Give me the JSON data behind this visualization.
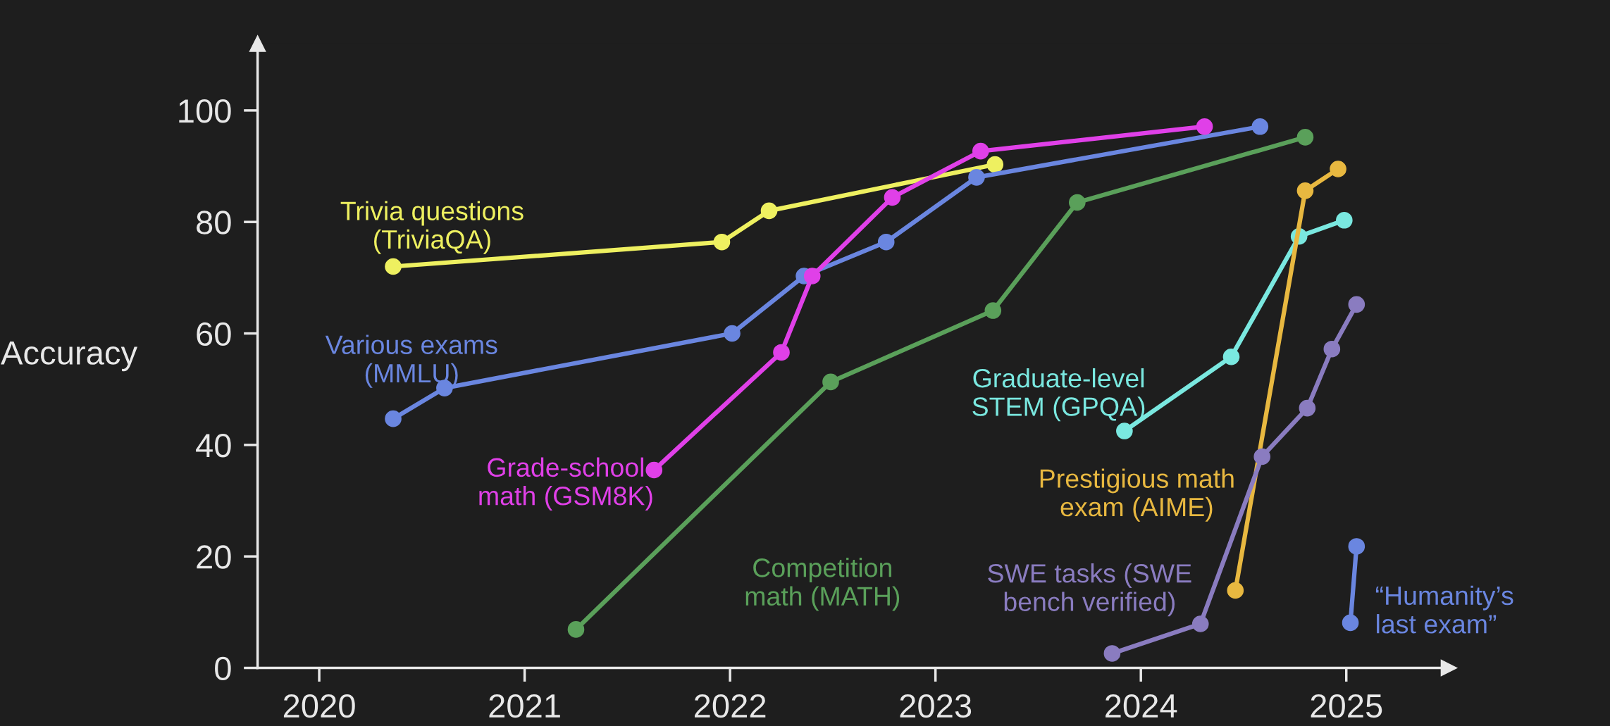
{
  "chart_data": {
    "type": "line",
    "ylabel": "Accuracy",
    "xlim": [
      2019.7,
      2025.5
    ],
    "ylim": [
      0,
      112
    ],
    "xticks": [
      2020,
      2021,
      2022,
      2023,
      2024,
      2025
    ],
    "yticks": [
      0,
      20,
      40,
      60,
      80,
      100
    ],
    "marker": "circle",
    "line_style": "solid",
    "series": [
      {
        "name": "Trivia questions\n(TriviaQA)",
        "color": "#eef060",
        "x": [
          2020.36,
          2021.96,
          2022.19,
          2023.29
        ],
        "values": [
          72,
          76.4,
          82,
          90.3
        ]
      },
      {
        "name": "Various exams\n(MMLU)",
        "color": "#6a86e0",
        "x": [
          2020.36,
          2020.61,
          2022.01,
          2022.36,
          2022.76,
          2023.2,
          2024.58
        ],
        "values": [
          44.7,
          50.2,
          60,
          70.3,
          76.4,
          88,
          97.1
        ]
      },
      {
        "name": "Grade-school\nmath (GSM8K)",
        "color": "#e040e8",
        "x": [
          2021.63,
          2022.25,
          2022.4,
          2022.79,
          2023.22,
          2024.31
        ],
        "values": [
          35.5,
          56.6,
          70.3,
          84.4,
          92.7,
          97.1
        ]
      },
      {
        "name": "Competition\nmath (MATH)",
        "color": "#5aa05a",
        "x": [
          2021.25,
          2022.49,
          2023.28,
          2023.69,
          2024.8
        ],
        "values": [
          6.9,
          51.3,
          64.1,
          83.5,
          95.2
        ]
      },
      {
        "name": "Graduate-level\nSTEM (GPQA)",
        "color": "#7ae8e0",
        "x": [
          2023.92,
          2024.44,
          2024.77,
          2024.99
        ],
        "values": [
          42.5,
          55.8,
          77.4,
          80.3
        ]
      },
      {
        "name": "Prestigious math\nexam (AIME)",
        "color": "#e8b840",
        "x": [
          2024.46,
          2024.8,
          2024.96
        ],
        "values": [
          13.9,
          85.6,
          89.5
        ]
      },
      {
        "name": "SWE tasks (SWE\nbench verified)",
        "color": "#8a7cc0",
        "x": [
          2023.86,
          2024.29,
          2024.59,
          2024.81,
          2024.93,
          2025.05
        ],
        "values": [
          2.6,
          7.9,
          37.9,
          46.6,
          57.2,
          65.2
        ]
      },
      {
        "name": "“Humanity’s\nlast exam”",
        "color": "#6a86e0",
        "x": [
          2025.02,
          2025.05
        ],
        "values": [
          8.1,
          21.8
        ]
      }
    ]
  }
}
